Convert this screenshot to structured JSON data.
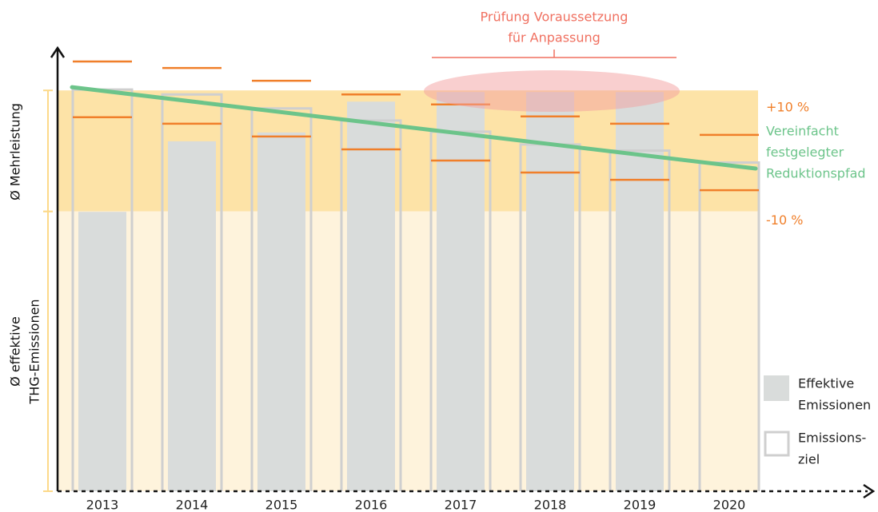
{
  "chart_data": {
    "type": "bar",
    "categories": [
      "2013",
      "2014",
      "2015",
      "2016",
      "2017",
      "2018",
      "2019",
      "2020"
    ],
    "ylim": [
      0,
      110
    ],
    "series": [
      {
        "name": [
          "Effektive",
          "Emissionen"
        ],
        "color": "#d9dcdb",
        "values": [
          69.7,
          87.3,
          89.5,
          97.2,
          99.6,
          99.6,
          99.6,
          null
        ]
      },
      {
        "name": [
          "Emissions-",
          "ziel"
        ],
        "color": "#cfcfcf",
        "values": [
          100.2,
          99,
          95.5,
          92.5,
          89.7,
          86.5,
          85,
          82
        ]
      }
    ],
    "upper_limit": {
      "color": "#f07f2a",
      "values": [
        107.2,
        105.6,
        102.4,
        99,
        96.5,
        93.5,
        91.7,
        88.9
      ]
    },
    "lower_limit": {
      "color": "#f07f2a",
      "values": [
        93.3,
        91.7,
        88.5,
        85.3,
        82.5,
        79.5,
        77.7,
        75.1
      ]
    },
    "reduction_path": {
      "label": [
        "Vereinfacht",
        "festgelegter",
        "Reduktionspfad"
      ],
      "color": "#6cc48a",
      "start": 100.8,
      "end": 80.5
    },
    "bands": [
      {
        "from": 69.8,
        "to": 100,
        "color": "#fde3a7",
        "label": "+10 %"
      },
      {
        "from": 0,
        "to": 69.8,
        "color": "#fef3dc",
        "label": "-10 %"
      }
    ],
    "y_labels": [
      [
        "Ø Mehrleistung"
      ],
      [
        "Ø effektive",
        "THG-Emissionen"
      ]
    ],
    "annotation": {
      "text": [
        "Prüfung Voraussetzung",
        "für Anpassung"
      ],
      "color": "#f07060"
    }
  }
}
